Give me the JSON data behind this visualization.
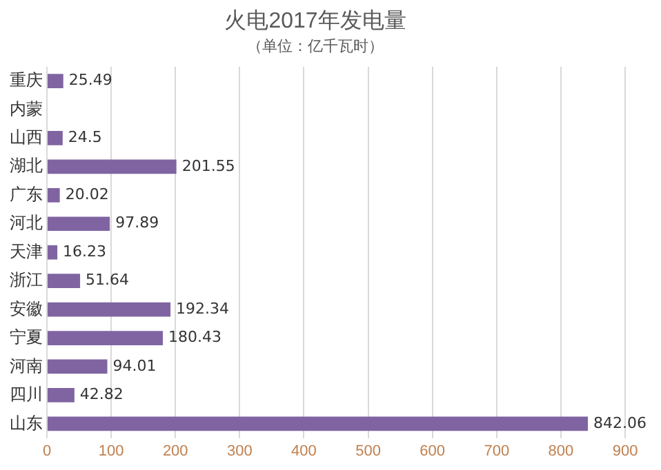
{
  "chart_data": {
    "type": "bar",
    "orientation": "horizontal",
    "title": "火电2017年发电量",
    "subtitle": "（单位：亿千瓦时）",
    "categories": [
      "重庆",
      "内蒙",
      "山西",
      "湖北",
      "广东",
      "河北",
      "天津",
      "浙江",
      "安徽",
      "宁夏",
      "河南",
      "四川",
      "山东"
    ],
    "values": [
      25.49,
      null,
      24.5,
      201.55,
      20.02,
      97.89,
      16.23,
      51.64,
      192.34,
      180.43,
      94.01,
      42.82,
      842.06
    ],
    "color": "#8064a2",
    "xlim": [
      0,
      900
    ],
    "xticks": [
      0,
      100,
      200,
      300,
      400,
      500,
      600,
      700,
      800,
      900
    ],
    "grid": "x",
    "data_labels": true
  }
}
